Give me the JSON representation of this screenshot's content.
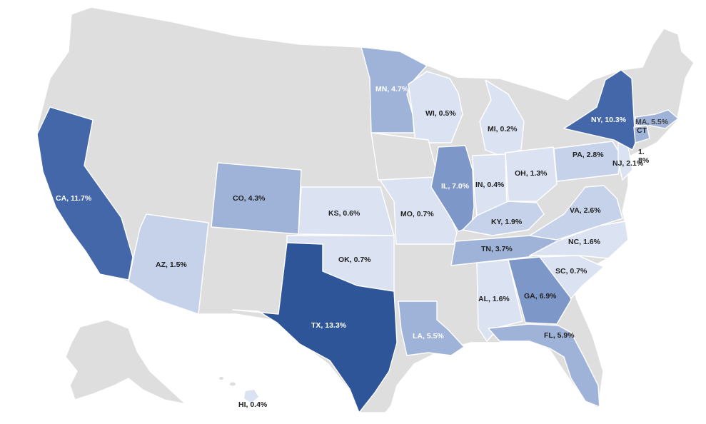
{
  "colors": {
    "no_data": "#dedede",
    "level_1": "#dbe3f3",
    "level_2": "#c5d2ea",
    "level_3": "#9fb3d9",
    "level_4": "#7e97c9",
    "level_5": "#4367a8",
    "level_6": "#2e5597",
    "label_dark": "#222222",
    "label_light": "#ffffff"
  },
  "labels": {
    "CA": "CA, 11.7%",
    "TX": "TX, 13.3%",
    "NY": "NY, 10.3%",
    "IL": "IL, 7.0%",
    "GA": "GA, 6.9%",
    "FL": "FL, 5.9%",
    "MA": "MA, 5.5%",
    "LA": "LA, 5.5%",
    "MN": "MN, 4.7%",
    "CO": "CO, 4.3%",
    "TN": "TN, 3.7%",
    "PA": "PA, 2.8%",
    "VA": "VA, 2.6%",
    "NJ": "NJ, 2.1%",
    "KY": "KY, 1.9%",
    "AL": "AL, 1.6%",
    "NC": "NC, 1.6%",
    "AZ": "AZ, 1.5%",
    "OH": "OH, 1.3%",
    "MO": "MO, 0.7%",
    "OK": "OK, 0.7%",
    "SC": "SC, 0.7%",
    "KS": "KS, 0.6%",
    "WI": "WI, 0.5%",
    "IN": "IN, 0.4%",
    "HI": "HI, 0.4%",
    "MI": "MI, 0.2%",
    "CT": "CT",
    "CT_value_1": "1.",
    "CT_value_2": "8%"
  },
  "values": {
    "CA": 11.7,
    "TX": 13.3,
    "NY": 10.3,
    "IL": 7.0,
    "GA": 6.9,
    "FL": 5.9,
    "MA": 5.5,
    "LA": 5.5,
    "MN": 4.7,
    "CO": 4.3,
    "TN": 3.7,
    "PA": 2.8,
    "VA": 2.6,
    "NJ": 2.1,
    "KY": 1.9,
    "AL": 1.6,
    "NC": 1.6,
    "AZ": 1.5,
    "OH": 1.3,
    "MO": 0.7,
    "OK": 0.7,
    "SC": 0.7,
    "KS": 0.6,
    "WI": 0.5,
    "IN": 0.4,
    "HI": 0.4,
    "MI": 0.2,
    "CT": 1.8
  }
}
